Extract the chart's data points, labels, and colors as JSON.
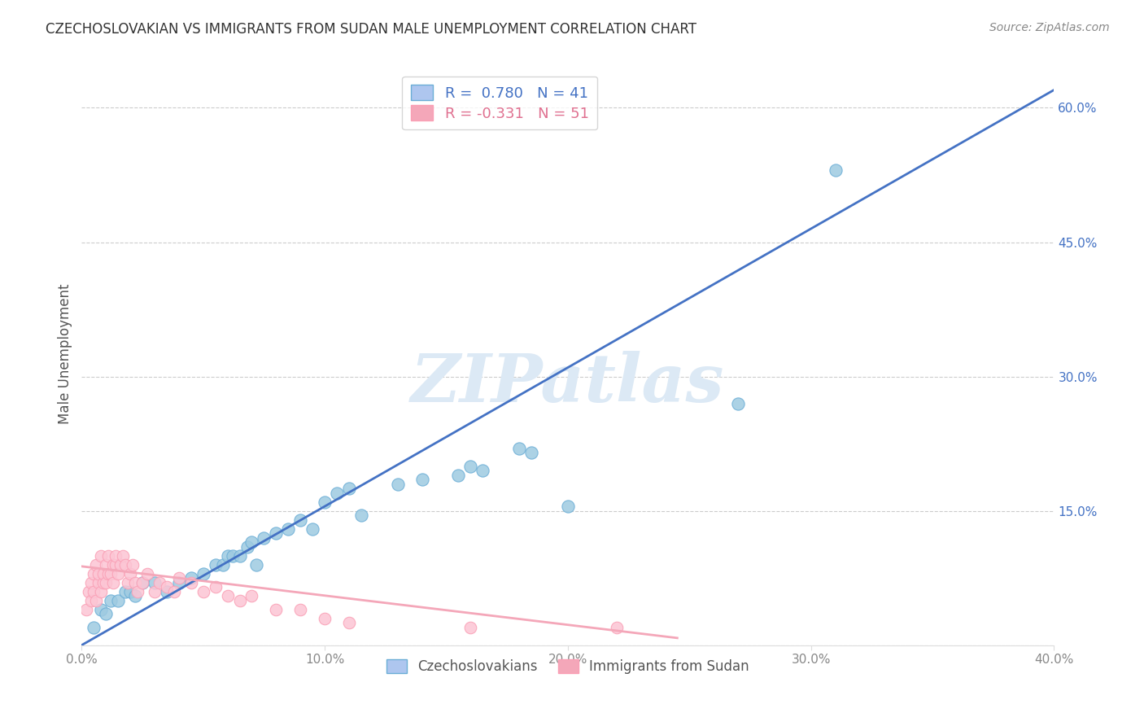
{
  "title": "CZECHOSLOVAKIAN VS IMMIGRANTS FROM SUDAN MALE UNEMPLOYMENT CORRELATION CHART",
  "source": "Source: ZipAtlas.com",
  "ylabel": "Male Unemployment",
  "xlim": [
    0.0,
    0.4
  ],
  "ylim": [
    0.0,
    0.65
  ],
  "x_ticks": [
    0.0,
    0.1,
    0.2,
    0.3,
    0.4
  ],
  "x_tick_labels": [
    "0.0%",
    "10.0%",
    "20.0%",
    "30.0%",
    "40.0%"
  ],
  "y_ticks": [
    0.0,
    0.15,
    0.3,
    0.45,
    0.6
  ],
  "y_tick_labels": [
    "",
    "15.0%",
    "30.0%",
    "45.0%",
    "60.0%"
  ],
  "blue_scatter_x": [
    0.005,
    0.008,
    0.01,
    0.012,
    0.015,
    0.018,
    0.02,
    0.022,
    0.025,
    0.03,
    0.035,
    0.04,
    0.045,
    0.05,
    0.055,
    0.058,
    0.06,
    0.062,
    0.065,
    0.068,
    0.07,
    0.072,
    0.075,
    0.08,
    0.085,
    0.09,
    0.095,
    0.1,
    0.105,
    0.11,
    0.115,
    0.13,
    0.14,
    0.155,
    0.16,
    0.165,
    0.18,
    0.185,
    0.2,
    0.27,
    0.31
  ],
  "blue_scatter_y": [
    0.02,
    0.04,
    0.035,
    0.05,
    0.05,
    0.06,
    0.06,
    0.055,
    0.07,
    0.07,
    0.06,
    0.07,
    0.075,
    0.08,
    0.09,
    0.09,
    0.1,
    0.1,
    0.1,
    0.11,
    0.115,
    0.09,
    0.12,
    0.125,
    0.13,
    0.14,
    0.13,
    0.16,
    0.17,
    0.175,
    0.145,
    0.18,
    0.185,
    0.19,
    0.2,
    0.195,
    0.22,
    0.215,
    0.155,
    0.27,
    0.53
  ],
  "pink_scatter_x": [
    0.002,
    0.003,
    0.004,
    0.004,
    0.005,
    0.005,
    0.006,
    0.006,
    0.007,
    0.007,
    0.008,
    0.008,
    0.009,
    0.009,
    0.01,
    0.01,
    0.011,
    0.011,
    0.012,
    0.013,
    0.013,
    0.014,
    0.014,
    0.015,
    0.016,
    0.017,
    0.018,
    0.019,
    0.02,
    0.021,
    0.022,
    0.023,
    0.025,
    0.027,
    0.03,
    0.032,
    0.035,
    0.038,
    0.04,
    0.045,
    0.05,
    0.055,
    0.06,
    0.065,
    0.07,
    0.08,
    0.09,
    0.1,
    0.11,
    0.16,
    0.22
  ],
  "pink_scatter_y": [
    0.04,
    0.06,
    0.05,
    0.07,
    0.06,
    0.08,
    0.05,
    0.09,
    0.07,
    0.08,
    0.06,
    0.1,
    0.07,
    0.08,
    0.09,
    0.07,
    0.1,
    0.08,
    0.08,
    0.09,
    0.07,
    0.09,
    0.1,
    0.08,
    0.09,
    0.1,
    0.09,
    0.07,
    0.08,
    0.09,
    0.07,
    0.06,
    0.07,
    0.08,
    0.06,
    0.07,
    0.065,
    0.06,
    0.075,
    0.07,
    0.06,
    0.065,
    0.055,
    0.05,
    0.055,
    0.04,
    0.04,
    0.03,
    0.025,
    0.02,
    0.02
  ],
  "blue_line_x": [
    0.0,
    0.4
  ],
  "blue_line_y": [
    0.0,
    0.62
  ],
  "pink_line_x": [
    0.0,
    0.245
  ],
  "pink_line_y": [
    0.088,
    0.008
  ],
  "blue_scatter_color": "#9ecae1",
  "blue_edge_color": "#6baed6",
  "pink_scatter_color": "#fcc5d4",
  "pink_edge_color": "#fa9fb5",
  "blue_line_color": "#4472c4",
  "pink_line_color": "#f4a7b9",
  "background_color": "#ffffff",
  "grid_color": "#cccccc",
  "watermark": "ZIPatlas",
  "watermark_color": "#dce9f5",
  "legend1_blue_face": "#aec6ef",
  "legend1_blue_edge": "#6baed6",
  "legend1_pink_face": "#f4a7b9",
  "legend1_pink_edge": "#fa9fb5",
  "legend1_blue_label": "R =  0.780   N = 41",
  "legend1_pink_label": "R = -0.331   N = 51",
  "legend1_blue_text_color": "#4472c4",
  "legend1_pink_text_color": "#e07090",
  "legend2_blue_label": "Czechoslovakians",
  "legend2_pink_label": "Immigrants from Sudan",
  "legend2_text_color": "#555555",
  "title_color": "#333333",
  "source_color": "#888888",
  "ylabel_color": "#555555",
  "ytick_color": "#4472c4",
  "xtick_color": "#888888"
}
